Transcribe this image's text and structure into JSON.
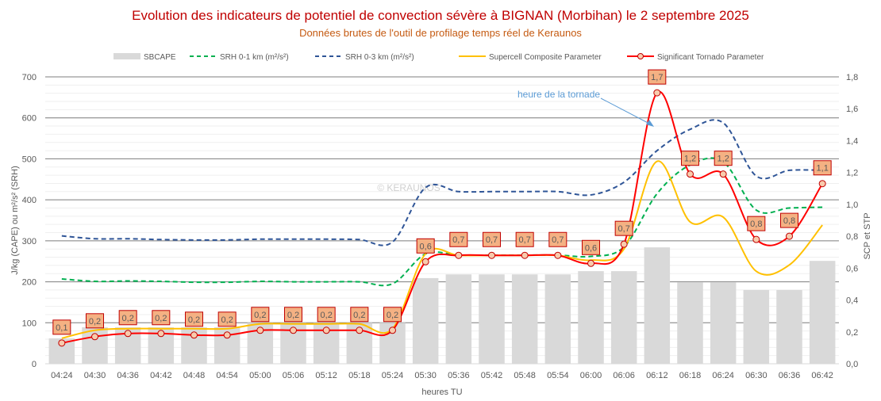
{
  "chart_data": {
    "type": "bar+line",
    "title": "Evolution des indicateurs de potentiel de convection sévère à BIGNAN (Morbihan) le 2 septembre 2025",
    "subtitle": "Données brutes de l'outil de profilage temps réel de Keraunos",
    "xlabel": "heures TU",
    "ylabel": "J/kg (CAPE)  ou  m²/s² (SRH)",
    "y2label": "SCP et STP",
    "ylim": [
      0,
      700
    ],
    "y2lim": [
      0,
      1.8
    ],
    "yticks": [
      "0",
      "100",
      "200",
      "300",
      "400",
      "500",
      "600",
      "700"
    ],
    "y2ticks": [
      "0,0",
      "0,2",
      "0,4",
      "0,6",
      "0,8",
      "1,0",
      "1,2",
      "1,4",
      "1,6",
      "1,8"
    ],
    "categories": [
      "04:24",
      "04:30",
      "04:36",
      "04:42",
      "04:48",
      "04:54",
      "05:00",
      "05:06",
      "05:12",
      "05:18",
      "05:24",
      "05:30",
      "05:36",
      "05:42",
      "05:48",
      "05:54",
      "06:00",
      "06:06",
      "06:12",
      "06:18",
      "06:24",
      "06:30",
      "06:36",
      "06:42"
    ],
    "series": [
      {
        "name": "SBCAPE",
        "type": "bar",
        "axis": "left",
        "color": "#D9D9D9",
        "values": [
          62,
          89,
          89,
          89,
          89,
          89,
          100,
          100,
          100,
          100,
          100,
          209,
          218,
          218,
          218,
          218,
          226,
          226,
          284,
          199,
          199,
          180,
          180,
          251
        ]
      },
      {
        "name": "SRH 0-1 km (m²/s²)",
        "type": "line",
        "dash": true,
        "axis": "left",
        "color": "#00B050",
        "values": [
          207,
          201,
          202,
          201,
          199,
          199,
          201,
          200,
          200,
          200,
          195,
          268,
          265,
          265,
          265,
          265,
          262,
          285,
          415,
          485,
          493,
          375,
          380,
          382
        ]
      },
      {
        "name": "SRH 0-3 km (m²/s²)",
        "type": "line",
        "dash": true,
        "axis": "left",
        "color": "#2F5597",
        "values": [
          312,
          305,
          305,
          303,
          302,
          302,
          304,
          304,
          304,
          303,
          297,
          430,
          420,
          420,
          420,
          420,
          412,
          443,
          520,
          572,
          588,
          458,
          472,
          472
        ]
      },
      {
        "name": "Supercell Composite Parameter",
        "type": "line",
        "axis": "right",
        "color": "#FFC000",
        "values": [
          0.16,
          0.21,
          0.22,
          0.22,
          0.22,
          0.22,
          0.25,
          0.25,
          0.25,
          0.25,
          0.22,
          0.69,
          0.68,
          0.68,
          0.68,
          0.68,
          0.65,
          0.72,
          1.27,
          0.89,
          0.92,
          0.58,
          0.62,
          0.87
        ]
      },
      {
        "name": "Significant Tornado Parameter",
        "type": "line",
        "axis": "right",
        "color": "#FF0000",
        "markers": true,
        "values": [
          0.13,
          0.17,
          0.19,
          0.19,
          0.18,
          0.18,
          0.21,
          0.21,
          0.21,
          0.21,
          0.21,
          0.64,
          0.68,
          0.68,
          0.68,
          0.68,
          0.63,
          0.75,
          1.7,
          1.19,
          1.19,
          0.78,
          0.8,
          1.13
        ],
        "labels": [
          "0,1",
          "0,2",
          "0,2",
          "0,2",
          "0,2",
          "0,2",
          "0,2",
          "0,2",
          "0,2",
          "0,2",
          "0,2",
          "0,6",
          "0,7",
          "0,7",
          "0,7",
          "0,7",
          "0,6",
          "0,7",
          "1,7",
          "1,2",
          "1,2",
          "0,8",
          "0,8",
          "1,1"
        ]
      }
    ],
    "annotation": "heure de la tornade",
    "watermark": "© KERAUNOS",
    "legend": "top"
  }
}
